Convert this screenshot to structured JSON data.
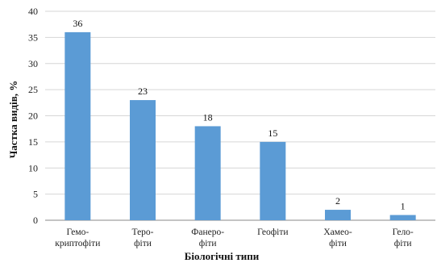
{
  "chart_data": {
    "type": "bar",
    "title": "",
    "xlabel": "Біологічні типи",
    "ylabel": "Частка видів, %",
    "ylim": [
      0,
      40
    ],
    "yticks": [
      0,
      5,
      10,
      15,
      20,
      25,
      30,
      35,
      40
    ],
    "grid": true,
    "legend": "none",
    "bar_color": "#5b9bd5",
    "categories": [
      [
        "Гемо-",
        "криптофіти"
      ],
      [
        "Теро-",
        "фіти"
      ],
      [
        "Фанеро-",
        "фіти"
      ],
      [
        "Геофіти"
      ],
      [
        "Хамео-",
        "фіти"
      ],
      [
        "Гело-",
        "фіти"
      ]
    ],
    "values": [
      36,
      23,
      18,
      15,
      2,
      1
    ],
    "data_labels": [
      "36",
      "23",
      "18",
      "15",
      "2",
      "1"
    ]
  }
}
